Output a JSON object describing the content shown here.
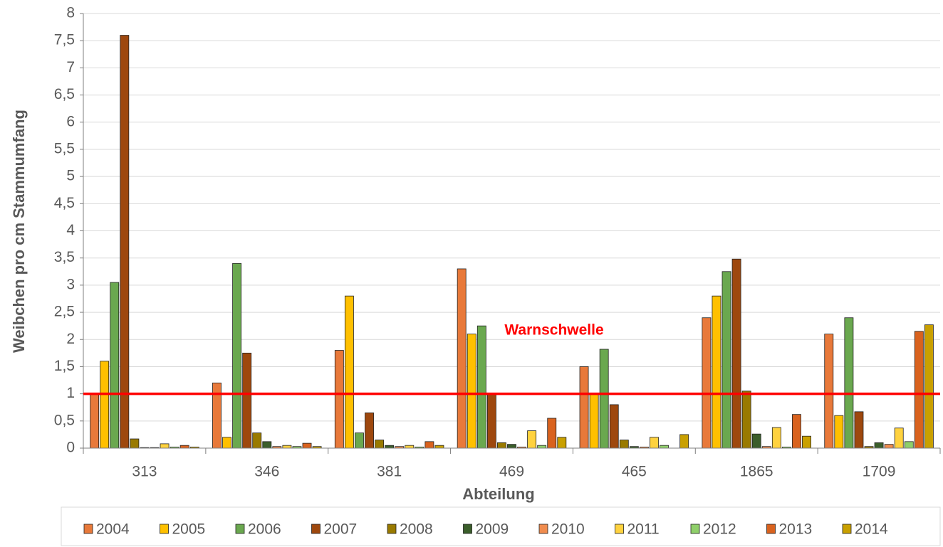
{
  "chart_data": {
    "type": "bar",
    "y_label": "Weibchen pro cm Stammumfang",
    "x_label": "Abteilung",
    "categories": [
      "313",
      "346",
      "381",
      "469",
      "465",
      "1865",
      "1709"
    ],
    "series": [
      {
        "name": "2004",
        "color": "#e8793a",
        "values": [
          1.0,
          1.2,
          1.8,
          3.3,
          1.5,
          2.4,
          2.1
        ]
      },
      {
        "name": "2005",
        "color": "#ffc000",
        "values": [
          1.6,
          0.2,
          2.8,
          2.1,
          1.0,
          2.8,
          0.6
        ]
      },
      {
        "name": "2006",
        "color": "#6aa84f",
        "values": [
          3.05,
          3.4,
          0.28,
          2.25,
          1.82,
          3.25,
          2.4
        ]
      },
      {
        "name": "2007",
        "color": "#9e480e",
        "values": [
          7.6,
          1.75,
          0.65,
          1.0,
          0.8,
          3.48,
          0.67
        ]
      },
      {
        "name": "2008",
        "color": "#997a00",
        "values": [
          0.17,
          0.28,
          0.15,
          0.1,
          0.15,
          1.05,
          0.03
        ]
      },
      {
        "name": "2009",
        "color": "#3b5e2b",
        "values": [
          0.01,
          0.12,
          0.05,
          0.07,
          0.03,
          0.26,
          0.1
        ]
      },
      {
        "name": "2010",
        "color": "#f08c4e",
        "values": [
          0.01,
          0.03,
          0.03,
          0.02,
          0.02,
          0.03,
          0.07
        ]
      },
      {
        "name": "2011",
        "color": "#ffd23f",
        "values": [
          0.08,
          0.05,
          0.05,
          0.32,
          0.2,
          0.38,
          0.37
        ]
      },
      {
        "name": "2012",
        "color": "#8fcf6a",
        "values": [
          0.02,
          0.03,
          0.02,
          0.05,
          0.05,
          0.02,
          0.12
        ]
      },
      {
        "name": "2013",
        "color": "#d9621e",
        "values": [
          0.05,
          0.09,
          0.12,
          0.55,
          0,
          0.62,
          2.15
        ]
      },
      {
        "name": "2014",
        "color": "#c9a000",
        "values": [
          0.02,
          0.03,
          0.05,
          0.2,
          0.25,
          0.22,
          2.27
        ]
      }
    ],
    "threshold": {
      "value": 1,
      "label": "Warnschwelle",
      "color": "#ff0000"
    },
    "ylim": [
      0,
      8
    ],
    "yticks": [
      0,
      {
        "value": 0.5,
        "label": "0,5"
      },
      1,
      {
        "value": 1.5,
        "label": "1,5"
      },
      2,
      {
        "value": 2.5,
        "label": "2,5"
      },
      3,
      {
        "value": 3.5,
        "label": "3,5"
      },
      4,
      {
        "value": 4.5,
        "label": "4,5"
      },
      5,
      {
        "value": 5.5,
        "label": "5,5"
      },
      6,
      {
        "value": 6.5,
        "label": "6,5"
      },
      7,
      {
        "value": 7.5,
        "label": "7,5"
      },
      8
    ],
    "grid": true,
    "legend": "bottom"
  }
}
